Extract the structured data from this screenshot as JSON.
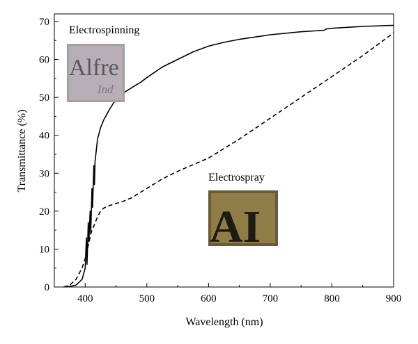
{
  "chart_data": {
    "type": "line",
    "title": "",
    "xlabel": "Wavelength (nm)",
    "ylabel": "Transmittance (%)",
    "xlim": [
      350,
      900
    ],
    "ylim": [
      0,
      72
    ],
    "xticks": [
      400,
      500,
      600,
      700,
      800,
      900
    ],
    "yticks": [
      0,
      10,
      20,
      30,
      40,
      50,
      60,
      70
    ],
    "grid": false,
    "series": [
      {
        "name": "Electrospinning",
        "style": "solid",
        "x": [
          370,
          385,
          395,
          400,
          402,
          403,
          405,
          406,
          408,
          409,
          411,
          412,
          414,
          415,
          416,
          418,
          420,
          425,
          430,
          440,
          450,
          460,
          470,
          480,
          490,
          500,
          525,
          550,
          575,
          600,
          625,
          650,
          700,
          750,
          788,
          790,
          800,
          850,
          900
        ],
        "y": [
          0,
          0.5,
          2,
          5,
          13,
          6,
          17,
          12,
          20,
          14,
          26,
          21,
          32,
          27,
          33,
          36,
          39,
          42,
          44,
          47,
          49.5,
          51,
          52,
          53,
          54,
          55.2,
          58,
          60,
          62,
          63.5,
          64.5,
          65.3,
          66.5,
          67.3,
          67.7,
          68,
          68.2,
          68.7,
          69
        ]
      },
      {
        "name": "Electrospray",
        "style": "dashed",
        "x": [
          365,
          375,
          385,
          395,
          400,
          405,
          410,
          415,
          420,
          425,
          430,
          440,
          450,
          460,
          475,
          490,
          500,
          525,
          550,
          600,
          650,
          700,
          750,
          800,
          850,
          900
        ],
        "y": [
          0,
          0.5,
          2,
          5,
          7.5,
          11,
          14.5,
          16.5,
          18.5,
          20,
          20.8,
          21.5,
          22,
          22.5,
          23.5,
          25,
          26,
          28.5,
          30.5,
          34,
          39,
          44.5,
          50,
          55.5,
          61,
          67
        ]
      }
    ],
    "annotations": [
      "Electrospinning",
      "Electrospray"
    ]
  }
}
